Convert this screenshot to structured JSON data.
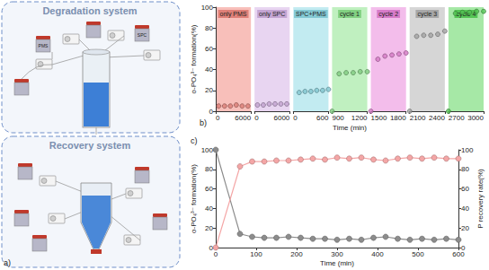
{
  "chart_data": [
    {
      "type": "scatter",
      "annotations": [
        "b)"
      ],
      "xlabel": "Time (min)",
      "ylabel": "o-PO₄³⁻ formation(%)",
      "ylim": [
        0,
        100
      ],
      "yticks": [
        0,
        20,
        40,
        60,
        80,
        100
      ],
      "grid": false,
      "marker": "circle",
      "series": [
        {
          "name": "only PMS",
          "color": "#f28b82",
          "xlim": [
            0,
            6000
          ],
          "xticks": [
            0,
            6000
          ],
          "x": [
            500,
            1500,
            2500,
            3500,
            4500,
            5500
          ],
          "values": [
            5,
            5,
            5,
            6,
            5,
            5
          ]
        },
        {
          "name": "only SPC",
          "color": "#d5b3e5",
          "xlim": [
            0,
            6000
          ],
          "xticks": [
            0,
            6000
          ],
          "x": [
            500,
            1500,
            2500,
            3500,
            4500,
            5500
          ],
          "values": [
            6,
            6,
            7,
            7,
            7,
            7
          ]
        },
        {
          "name": "SPC+PMS",
          "color": "#8fdbe6",
          "xlim": [
            0,
            600
          ],
          "xticks": [
            0,
            600
          ],
          "x": [
            100,
            200,
            300,
            400,
            500,
            600
          ],
          "values": [
            18,
            19,
            19,
            20,
            20,
            21
          ]
        },
        {
          "name": "cycle 1",
          "color": "#8de38d",
          "xlim": [
            900,
            1200
          ],
          "xticks": [
            900,
            1200
          ],
          "x": [
            900,
            960,
            1020,
            1080,
            1140,
            1200
          ],
          "values": [
            0,
            36,
            37,
            37,
            38,
            38
          ]
        },
        {
          "name": "cycle 2",
          "color": "#ea86da",
          "xlim": [
            1500,
            1800
          ],
          "xticks": [
            1500,
            1800
          ],
          "x": [
            1500,
            1560,
            1620,
            1680,
            1740,
            1800
          ],
          "values": [
            0,
            50,
            53,
            54,
            55,
            56
          ]
        },
        {
          "name": "cycle 3",
          "color": "#b5b5b5",
          "xlim": [
            2100,
            2400
          ],
          "xticks": [
            2100,
            2400
          ],
          "x": [
            2100,
            2160,
            2220,
            2280,
            2340,
            2400
          ],
          "values": [
            0,
            72,
            73,
            73,
            74,
            77
          ]
        },
        {
          "name": "cycle 4",
          "color": "#5cd65c",
          "xlim": [
            2700,
            3000
          ],
          "xticks": [
            2700,
            3000
          ],
          "x": [
            2700,
            2760,
            2820,
            2880,
            2940,
            3000
          ],
          "values": [
            0,
            94,
            95,
            95,
            96,
            96
          ]
        }
      ]
    },
    {
      "type": "line",
      "annotations": [
        "c)"
      ],
      "xlabel": "Time (min)",
      "ylabel": "o-PO₄³⁻ formation(%)",
      "y2label": "P recovery rate(%)",
      "xlim": [
        0,
        600
      ],
      "xticks": [
        0,
        100,
        200,
        300,
        400,
        500,
        600
      ],
      "ylim": [
        0,
        100
      ],
      "yticks": [
        0,
        20,
        40,
        60,
        80,
        100
      ],
      "y2lim": [
        0,
        100
      ],
      "y2ticks": [
        0,
        20,
        40,
        60,
        80,
        100
      ],
      "grid": false,
      "marker": "circle",
      "x": [
        0,
        60,
        90,
        120,
        150,
        180,
        210,
        240,
        270,
        300,
        330,
        360,
        390,
        420,
        450,
        480,
        510,
        540,
        570,
        600
      ],
      "series": [
        {
          "color": "#8c8c8c",
          "values": [
            100,
            14,
            11,
            10,
            10,
            11,
            10,
            9,
            9,
            8,
            9,
            8,
            10,
            11,
            9,
            8,
            9,
            8,
            9,
            8
          ]
        },
        {
          "color": "#f4a6a6",
          "axis": "y2",
          "values": [
            0,
            83,
            88,
            88,
            89,
            89,
            90,
            91,
            90,
            92,
            91,
            92,
            90,
            89,
            91,
            92,
            91,
            92,
            91,
            91
          ]
        }
      ]
    }
  ],
  "diagram": {
    "label": "a)",
    "systems": [
      {
        "title": "Degradation system",
        "reagents": [
          "PMS",
          "SPC"
        ]
      },
      {
        "title": "Recovery system"
      }
    ]
  }
}
